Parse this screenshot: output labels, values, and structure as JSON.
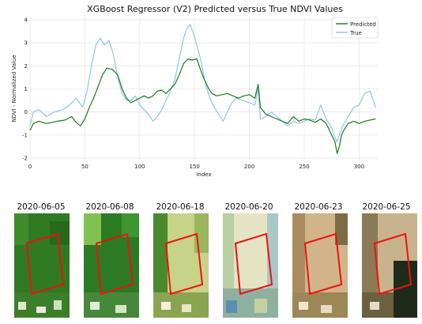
{
  "chart_data": {
    "type": "line",
    "title": "XGBoost Regressor (V2) Predicted versus True NDVI Values",
    "xlabel": "Index",
    "ylabel": "NDVI - Normalized Value",
    "xlim": [
      0,
      317
    ],
    "ylim": [
      -2.1,
      4.1
    ],
    "xticks": [
      0,
      50,
      100,
      150,
      200,
      250,
      300
    ],
    "yticks": [
      -2,
      -1,
      0,
      1,
      2,
      3,
      4
    ],
    "grid": true,
    "legend": "top-right",
    "colors": {
      "Predicted": "#1a7a1a",
      "True": "#8ec5ea"
    },
    "series": [
      {
        "name": "Predicted",
        "x": [
          0,
          3,
          8,
          15,
          25,
          32,
          38,
          42,
          46,
          50,
          54,
          58,
          62,
          66,
          70,
          75,
          80,
          84,
          88,
          92,
          96,
          100,
          104,
          108,
          112,
          116,
          120,
          124,
          128,
          132,
          136,
          140,
          144,
          148,
          152,
          155,
          158,
          160,
          163,
          166,
          170,
          175,
          180,
          185,
          190,
          195,
          200,
          205,
          208,
          210,
          215,
          220,
          225,
          230,
          235,
          240,
          245,
          250,
          255,
          260,
          265,
          270,
          275,
          278,
          280,
          282,
          284,
          286,
          290,
          295,
          300,
          305,
          310,
          315
        ],
        "values": [
          -0.8,
          -0.5,
          -0.4,
          -0.5,
          -0.4,
          -0.35,
          -0.2,
          -0.45,
          -0.6,
          -0.3,
          0.2,
          0.6,
          1.1,
          1.6,
          1.9,
          1.85,
          1.6,
          1.0,
          0.6,
          0.4,
          0.5,
          0.6,
          0.7,
          0.6,
          0.7,
          0.9,
          0.95,
          0.8,
          1.0,
          1.2,
          1.6,
          2.1,
          2.3,
          2.25,
          2.3,
          1.9,
          1.5,
          1.3,
          1.0,
          0.8,
          0.7,
          0.75,
          0.8,
          0.7,
          0.6,
          0.7,
          0.75,
          0.6,
          1.2,
          0.2,
          -0.1,
          -0.2,
          -0.3,
          -0.4,
          -0.5,
          -0.2,
          -0.4,
          -0.3,
          -0.35,
          -0.45,
          -0.3,
          -0.5,
          -1.0,
          -1.3,
          -1.8,
          -1.5,
          -1.0,
          -0.8,
          -0.5,
          -0.4,
          -0.5,
          -0.4,
          -0.35,
          -0.3
        ]
      },
      {
        "name": "True",
        "x": [
          0,
          3,
          8,
          15,
          22,
          30,
          36,
          42,
          48,
          52,
          56,
          60,
          64,
          68,
          72,
          76,
          80,
          84,
          88,
          92,
          96,
          100,
          104,
          108,
          112,
          116,
          120,
          124,
          128,
          132,
          136,
          140,
          143,
          146,
          149,
          152,
          156,
          160,
          164,
          168,
          172,
          176,
          180,
          184,
          188,
          194,
          200,
          205,
          208,
          210,
          215,
          220,
          225,
          230,
          235,
          240,
          245,
          250,
          255,
          260,
          265,
          270,
          275,
          278,
          280,
          282,
          285,
          290,
          295,
          300,
          305,
          310,
          315
        ],
        "values": [
          -0.6,
          0.0,
          0.1,
          -0.2,
          0.0,
          0.1,
          0.3,
          0.6,
          0.2,
          0.9,
          2.0,
          2.9,
          3.2,
          2.9,
          3.1,
          2.5,
          1.5,
          0.8,
          0.5,
          0.5,
          0.7,
          0.3,
          0.1,
          -0.1,
          -0.4,
          -0.2,
          0.1,
          0.5,
          0.9,
          1.4,
          2.3,
          3.2,
          3.6,
          3.8,
          3.4,
          2.9,
          2.2,
          1.2,
          0.6,
          0.2,
          -0.1,
          -0.4,
          0.0,
          0.4,
          0.6,
          0.5,
          0.4,
          0.3,
          1.0,
          -0.3,
          -0.2,
          0.0,
          -0.2,
          -0.4,
          -0.6,
          -0.4,
          -0.5,
          -0.4,
          -0.3,
          -0.35,
          0.3,
          -0.3,
          -0.7,
          -1.1,
          -1.3,
          -1.0,
          -0.6,
          -0.2,
          0.2,
          0.3,
          0.8,
          0.9,
          0.2
        ]
      }
    ]
  },
  "thumbnails": [
    {
      "date": "2020-06-05",
      "palette": "green"
    },
    {
      "date": "2020-06-08",
      "palette": "green-bright"
    },
    {
      "date": "2020-06-18",
      "palette": "yellow-green"
    },
    {
      "date": "2020-06-20",
      "palette": "pale-cloudy"
    },
    {
      "date": "2020-06-23",
      "palette": "tan"
    },
    {
      "date": "2020-06-25",
      "palette": "tan-dark"
    }
  ]
}
